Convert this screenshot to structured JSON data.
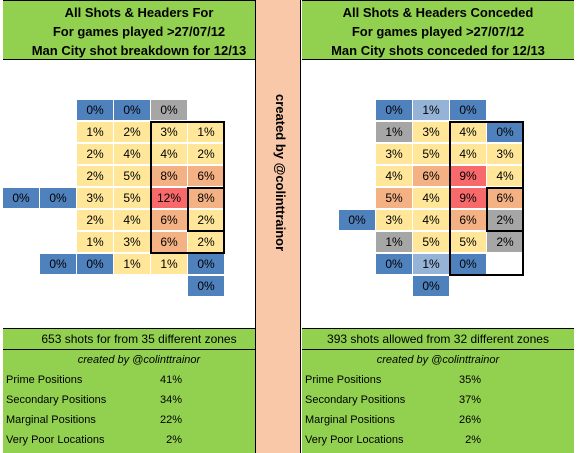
{
  "panels": [
    {
      "id": "for",
      "title_lines": [
        "All Shots & Headers For",
        "For games played >27/07/12",
        "Man City shot breakdown for 12/13"
      ],
      "summary": "653 shots for from 35 different zones",
      "credit": "created by @colinttrainor",
      "stats": [
        {
          "label": "Prime Positions",
          "value": "41%"
        },
        {
          "label": "Secondary Positions",
          "value": "34%"
        },
        {
          "label": "Marginal Positions",
          "value": "22%"
        },
        {
          "label": "Very Poor Locations",
          "value": "2%"
        }
      ]
    },
    {
      "id": "conceded",
      "title_lines": [
        "All Shots & Headers Conceded",
        "For games played >27/07/12",
        "Man City shots conceded for 12/13"
      ],
      "summary": "393 shots allowed from 32 different zones",
      "credit": "created by @colinttrainor",
      "stats": [
        {
          "label": "Prime Positions",
          "value": "35%"
        },
        {
          "label": "Secondary Positions",
          "value": "37%"
        },
        {
          "label": "Marginal Positions",
          "value": "26%"
        },
        {
          "label": "Very Poor Locations",
          "value": "2%"
        }
      ]
    }
  ],
  "divider_text": "created by @colinttrainor",
  "colors": {
    "green": "#92d050",
    "divider": "#f8c8a8",
    "blue": "#4f81bd",
    "blue_light": "#95b3d7",
    "grey": "#a6a6a6",
    "yellow": "#ffe699",
    "orange": "#f4b183",
    "red": "#f8696b"
  },
  "chart_data": [
    {
      "type": "heatmap",
      "title": "All Shots & Headers For",
      "rows": [
        [
          "",
          "",
          "0%",
          "0%",
          "0%",
          "",
          ""
        ],
        [
          "",
          "",
          "1%",
          "2%",
          "3%",
          "1%",
          ""
        ],
        [
          "",
          "",
          "2%",
          "4%",
          "4%",
          "2%",
          ""
        ],
        [
          "",
          "",
          "2%",
          "5%",
          "8%",
          "6%",
          ""
        ],
        [
          "0%",
          "0%",
          "3%",
          "5%",
          "12%",
          "8%",
          ""
        ],
        [
          "",
          "",
          "2%",
          "4%",
          "6%",
          "2%",
          ""
        ],
        [
          "",
          "",
          "1%",
          "3%",
          "6%",
          "2%",
          ""
        ],
        [
          "",
          "0%",
          "0%",
          "1%",
          "1%",
          "0%",
          ""
        ],
        [
          "",
          "",
          "",
          "",
          "",
          "0%",
          ""
        ]
      ],
      "colors": [
        [
          "",
          "",
          "blue",
          "blue",
          "grey",
          "",
          ""
        ],
        [
          "",
          "",
          "yellow",
          "yellow",
          "yellow",
          "yellow",
          ""
        ],
        [
          "",
          "",
          "yellow",
          "yellow",
          "yellow",
          "yellow",
          ""
        ],
        [
          "",
          "",
          "yellow",
          "yellow",
          "orange",
          "orange",
          ""
        ],
        [
          "blue",
          "blue",
          "yellow",
          "yellow",
          "red",
          "orange",
          ""
        ],
        [
          "",
          "",
          "yellow",
          "yellow",
          "orange",
          "yellow",
          ""
        ],
        [
          "",
          "",
          "yellow",
          "yellow",
          "orange",
          "yellow",
          ""
        ],
        [
          "",
          "blue",
          "blue",
          "yellow",
          "yellow",
          "blue",
          ""
        ],
        [
          "",
          "",
          "",
          "",
          "",
          "blue",
          ""
        ]
      ]
    },
    {
      "type": "heatmap",
      "title": "All Shots & Headers Conceded",
      "rows": [
        [
          "",
          "",
          "0%",
          "1%",
          "0%",
          "",
          ""
        ],
        [
          "",
          "",
          "1%",
          "3%",
          "4%",
          "0%",
          ""
        ],
        [
          "",
          "",
          "3%",
          "5%",
          "4%",
          "3%",
          ""
        ],
        [
          "",
          "",
          "4%",
          "6%",
          "9%",
          "4%",
          ""
        ],
        [
          "",
          "",
          "5%",
          "4%",
          "9%",
          "6%",
          ""
        ],
        [
          "",
          "0%",
          "3%",
          "4%",
          "6%",
          "2%",
          ""
        ],
        [
          "",
          "",
          "1%",
          "5%",
          "5%",
          "2%",
          ""
        ],
        [
          "",
          "",
          "0%",
          "1%",
          "0%",
          "",
          ""
        ],
        [
          "",
          "",
          "",
          "0%",
          "",
          "",
          ""
        ]
      ],
      "colors": [
        [
          "",
          "",
          "blue",
          "blue_light",
          "blue",
          "",
          ""
        ],
        [
          "",
          "",
          "grey",
          "yellow",
          "yellow",
          "blue",
          ""
        ],
        [
          "",
          "",
          "yellow",
          "yellow",
          "yellow",
          "yellow",
          ""
        ],
        [
          "",
          "",
          "yellow",
          "orange",
          "red",
          "yellow",
          ""
        ],
        [
          "",
          "",
          "orange",
          "yellow",
          "red",
          "orange",
          ""
        ],
        [
          "",
          "blue",
          "yellow",
          "yellow",
          "orange",
          "grey",
          ""
        ],
        [
          "",
          "",
          "grey",
          "yellow",
          "yellow",
          "grey",
          ""
        ],
        [
          "",
          "",
          "blue",
          "blue_light",
          "blue",
          "",
          ""
        ],
        [
          "",
          "",
          "",
          "blue",
          "",
          "",
          ""
        ]
      ]
    }
  ]
}
